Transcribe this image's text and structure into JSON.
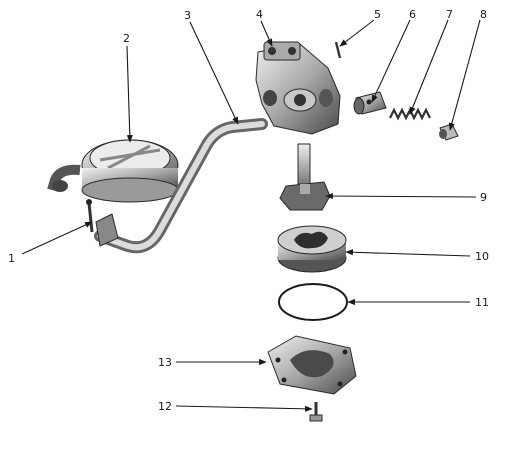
{
  "callouts": [
    "1",
    "2",
    "3",
    "4",
    "5",
    "6",
    "7",
    "8",
    "9",
    "10",
    "11",
    "12",
    "13"
  ],
  "colors": {
    "ink": "#1a1a1a",
    "paper": "#ffffff",
    "metal_dark": "#3a3a3a",
    "metal_mid": "#8c8c8c",
    "metal_light": "#d6d6d6"
  }
}
